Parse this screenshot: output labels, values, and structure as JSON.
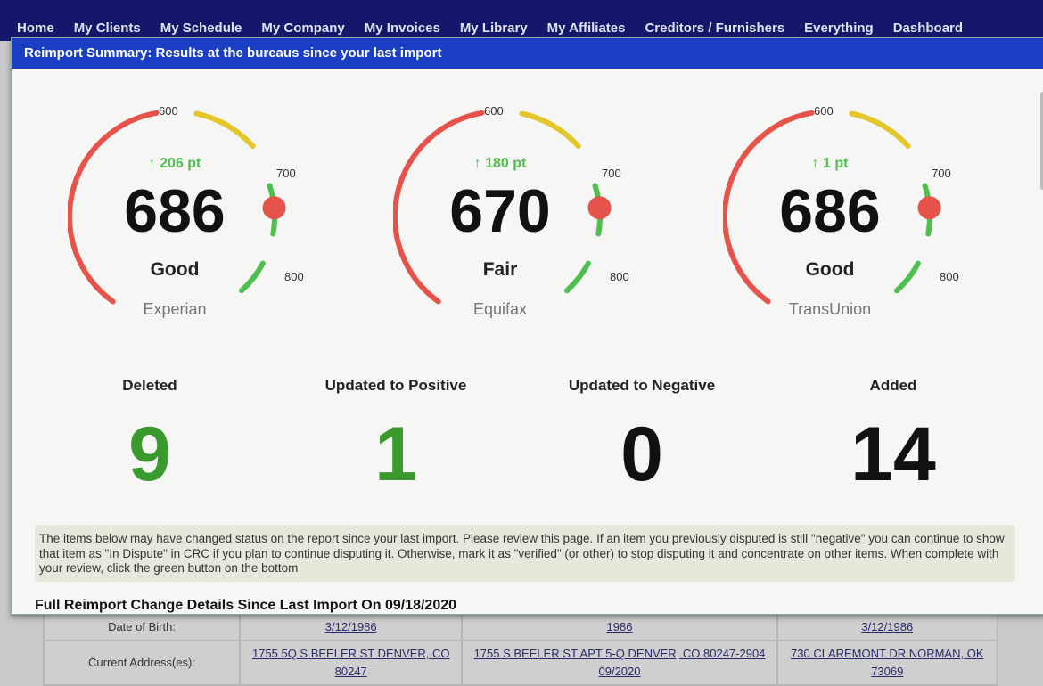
{
  "nav": [
    "Home",
    "My Clients",
    "My Schedule",
    "My Company",
    "My Invoices",
    "My Library",
    "My Affiliates",
    "Creditors / Furnishers",
    "Everything",
    "Dashboard"
  ],
  "header": "Reimport Summary: Results at the bureaus since your last import",
  "ticks": {
    "t600": "600",
    "t700": "700",
    "t800": "800"
  },
  "gauges": [
    {
      "bureau": "Experian",
      "score": "686",
      "rating": "Good",
      "delta": "206 pt"
    },
    {
      "bureau": "Equifax",
      "score": "670",
      "rating": "Fair",
      "delta": "180 pt"
    },
    {
      "bureau": "TransUnion",
      "score": "686",
      "rating": "Good",
      "delta": "1 pt"
    }
  ],
  "colors": {
    "red": "#e5534b",
    "yellow": "#e2c62a",
    "green": "#4fbf4f",
    "marker": "#e5534b"
  },
  "stats": [
    {
      "label": "Deleted",
      "value": "9",
      "color": "#3a9a2e"
    },
    {
      "label": "Updated to Positive",
      "value": "1",
      "color": "#3a9a2e"
    },
    {
      "label": "Updated to Negative",
      "value": "0",
      "color": "#111"
    },
    {
      "label": "Added",
      "value": "14",
      "color": "#111"
    }
  ],
  "notice": "The items below may have changed status on the report since your last import. Please review this page. If an item you previously disputed is still \"negative\" you can continue to show that item as \"In Dispute\" in CRC if you plan to continue disputing it. Otherwise, mark it as \"verified\" (or other) to stop disputing it and concentrate on other items. When complete with your review, click the green button on the bottom",
  "full_heading": "Full Reimport Change Details Since Last Import On 09/18/2020",
  "table": {
    "rows": [
      {
        "label": "Date of Birth:",
        "values": [
          "3/12/1986",
          "1986",
          "3/12/1986"
        ]
      },
      {
        "label": "Current Address(es):",
        "values": [
          "1755 5Q S BEELER ST DENVER, CO 80247",
          "1755 S BEELER ST APT 5-Q DENVER, CO 80247-2904 09/2020",
          "730 CLAREMONT DR NORMAN, OK 73069"
        ]
      }
    ]
  }
}
